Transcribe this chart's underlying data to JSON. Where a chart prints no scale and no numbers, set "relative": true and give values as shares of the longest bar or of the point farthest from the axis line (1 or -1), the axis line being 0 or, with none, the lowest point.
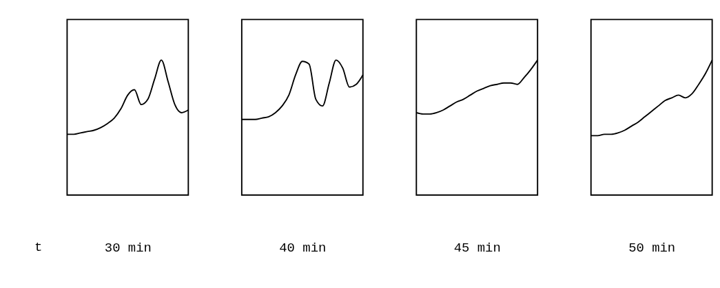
{
  "chart_data": [
    {
      "type": "line",
      "relative": true,
      "xlabel": "30 min",
      "annotations": [
        "t"
      ],
      "color": "#000000",
      "categories": [
        null,
        null,
        null,
        null,
        null,
        null,
        null,
        null,
        null,
        null,
        null,
        null,
        null,
        null,
        null,
        null,
        null,
        null,
        null
      ],
      "values": [
        0.45,
        0.45,
        0.46,
        0.47,
        0.48,
        0.5,
        0.53,
        0.57,
        0.64,
        0.74,
        0.78,
        0.67,
        0.71,
        0.86,
        1.0,
        0.84,
        0.67,
        0.61,
        0.63
      ]
    },
    {
      "type": "line",
      "relative": true,
      "xlabel": "40 min",
      "color": "#000000",
      "categories": [
        null,
        null,
        null,
        null,
        null,
        null,
        null,
        null,
        null,
        null,
        null,
        null,
        null,
        null,
        null,
        null,
        null,
        null,
        null
      ],
      "values": [
        0.56,
        0.56,
        0.56,
        0.57,
        0.58,
        0.61,
        0.66,
        0.74,
        0.89,
        0.99,
        0.97,
        0.71,
        0.66,
        0.83,
        1.0,
        0.94,
        0.8,
        0.82,
        0.89
      ]
    },
    {
      "type": "line",
      "relative": true,
      "xlabel": "45 min",
      "color": "#000000",
      "categories": [
        null,
        null,
        null,
        null,
        null,
        null,
        null,
        null,
        null,
        null,
        null,
        null,
        null,
        null,
        null,
        null,
        null,
        null,
        null
      ],
      "values": [
        0.61,
        0.6,
        0.6,
        0.61,
        0.63,
        0.66,
        0.69,
        0.71,
        0.74,
        0.77,
        0.79,
        0.81,
        0.82,
        0.83,
        0.83,
        0.82,
        0.87,
        0.93,
        1.0
      ]
    },
    {
      "type": "line",
      "relative": true,
      "xlabel": "50 min",
      "color": "#000000",
      "categories": [
        null,
        null,
        null,
        null,
        null,
        null,
        null,
        null,
        null,
        null,
        null,
        null,
        null,
        null,
        null,
        null,
        null,
        null,
        null
      ],
      "values": [
        0.44,
        0.44,
        0.45,
        0.45,
        0.46,
        0.48,
        0.51,
        0.54,
        0.58,
        0.62,
        0.66,
        0.7,
        0.72,
        0.74,
        0.72,
        0.75,
        0.82,
        0.9,
        1.0
      ]
    }
  ]
}
